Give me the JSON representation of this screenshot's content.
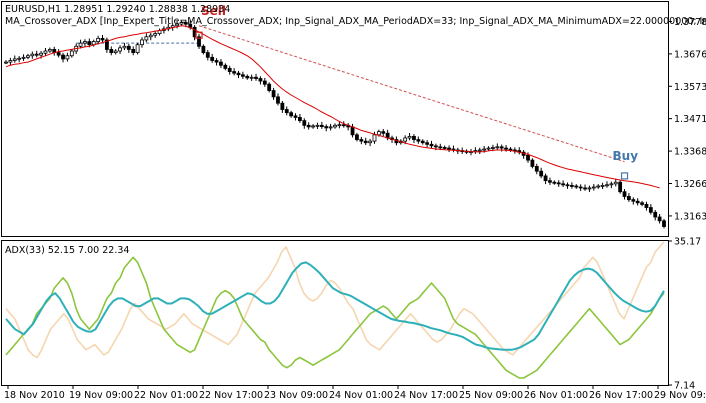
{
  "header": {
    "symbol_line": "EURUSD,H1  1.28951 1.29240 1.28838 1.28934",
    "params_line": "MA_Crossover_ADX [Inp_Expert_Title=MA_Crossover_ADX; Inp_Signal_ADX_MA_PeriodADX=33; Inp_Signal_ADX_MA_MinimumADX=22.00000000; Inp_S"
  },
  "indicator": {
    "label": "ADX(33) 52.15 7.00 22.34"
  },
  "signals": {
    "sell_label": "Sell",
    "buy_label": "Buy"
  },
  "colors": {
    "bars": "#000000",
    "ma": "#dd0000",
    "trend_line": "#d05050",
    "sell": "#cc2222",
    "buy": "#4477aa",
    "adx": "#2eb0b8",
    "plus_di": "#f5d6b0",
    "minus_di": "#8cc63e",
    "frame": "#000000",
    "background": "#ffffff"
  },
  "chart_data": [
    {
      "type": "candlestick",
      "title": "EURUSD,H1",
      "ylim": [
        1.31,
        1.384
      ],
      "y_ticks": [
        "1.37785",
        "1.36760",
        "1.35735",
        "1.34710",
        "1.33685",
        "1.32660",
        "1.31635"
      ],
      "x_ticks": [
        "18 Nov 2010",
        "19 Nov 09:00",
        "22 Nov 01:00",
        "22 Nov 17:00",
        "23 Nov 09:00",
        "24 Nov 01:00",
        "24 Nov 17:00",
        "25 Nov 09:00",
        "26 Nov 01:00",
        "26 Nov 17:00",
        "29 Nov 09:00"
      ],
      "close": [
        1.365,
        1.3655,
        1.366,
        1.3662,
        1.3665,
        1.367,
        1.3675,
        1.3672,
        1.3678,
        1.3685,
        1.369,
        1.368,
        1.3672,
        1.366,
        1.367,
        1.3685,
        1.37,
        1.371,
        1.3715,
        1.3705,
        1.3715,
        1.3725,
        1.372,
        1.369,
        1.368,
        1.3685,
        1.3695,
        1.37,
        1.369,
        1.368,
        1.3705,
        1.372,
        1.373,
        1.3735,
        1.374,
        1.375,
        1.3755,
        1.376,
        1.3765,
        1.377,
        1.3775,
        1.377,
        1.376,
        1.373,
        1.37,
        1.368,
        1.3665,
        1.3655,
        1.365,
        1.364,
        1.363,
        1.362,
        1.3615,
        1.361,
        1.3605,
        1.36,
        1.3602,
        1.3598,
        1.359,
        1.358,
        1.356,
        1.354,
        1.352,
        1.35,
        1.349,
        1.348,
        1.3475,
        1.3465,
        1.345,
        1.3445,
        1.3448,
        1.345,
        1.3446,
        1.3442,
        1.3445,
        1.345,
        1.3452,
        1.345,
        1.3445,
        1.342,
        1.3405,
        1.34,
        1.3395,
        1.34,
        1.342,
        1.343,
        1.3425,
        1.341,
        1.3405,
        1.3395,
        1.34,
        1.341,
        1.3415,
        1.3405,
        1.34,
        1.3395,
        1.339,
        1.3385,
        1.3382,
        1.338,
        1.3378,
        1.3375,
        1.3372,
        1.337,
        1.3368,
        1.3365,
        1.3367,
        1.337,
        1.3372,
        1.3375,
        1.3378,
        1.338,
        1.3382,
        1.3378,
        1.3375,
        1.3372,
        1.337,
        1.3365,
        1.3355,
        1.334,
        1.332,
        1.3305,
        1.329,
        1.3275,
        1.327,
        1.3268,
        1.3265,
        1.3262,
        1.326,
        1.3258,
        1.3255,
        1.3252,
        1.325,
        1.3252,
        1.3255,
        1.3258,
        1.326,
        1.3262,
        1.3265,
        1.327,
        1.324,
        1.3225,
        1.3215,
        1.321,
        1.3205,
        1.32,
        1.319,
        1.3175,
        1.316,
        1.3148,
        1.313
      ],
      "moving_average": [
        1.3635,
        1.364,
        1.3643,
        1.3645,
        1.3648,
        1.365,
        1.3655,
        1.366,
        1.3665,
        1.367,
        1.3675,
        1.368,
        1.3683,
        1.3685,
        1.3688,
        1.369,
        1.3693,
        1.3695,
        1.3698,
        1.37,
        1.3704,
        1.3708,
        1.3712,
        1.3716,
        1.372,
        1.3725,
        1.3728,
        1.373,
        1.3733,
        1.3736,
        1.3738,
        1.3741,
        1.3743,
        1.3745,
        1.3748,
        1.375,
        1.3753,
        1.3756,
        1.3759,
        1.3762,
        1.3765,
        1.3763,
        1.3758,
        1.3752,
        1.3745,
        1.3738,
        1.373,
        1.3722,
        1.3715,
        1.3708,
        1.3702,
        1.3696,
        1.369,
        1.3684,
        1.3677,
        1.367,
        1.366,
        1.3648,
        1.3635,
        1.362,
        1.3605,
        1.359,
        1.3577,
        1.3565,
        1.3555,
        1.3546,
        1.3538,
        1.353,
        1.3522,
        1.3515,
        1.3508,
        1.35,
        1.3492,
        1.3485,
        1.3478,
        1.347,
        1.3462,
        1.3455,
        1.345,
        1.3445,
        1.344,
        1.3434,
        1.343,
        1.3426,
        1.3422,
        1.3418,
        1.3414,
        1.341,
        1.3406,
        1.3402,
        1.3398,
        1.3394,
        1.339,
        1.3387,
        1.3384,
        1.3381,
        1.3379,
        1.3377,
        1.3375,
        1.3374,
        1.3373,
        1.3372,
        1.3371,
        1.337,
        1.3369,
        1.3368,
        1.3367,
        1.3366,
        1.3366,
        1.3367,
        1.3369,
        1.3371,
        1.3372,
        1.3372,
        1.3371,
        1.337,
        1.3368,
        1.3365,
        1.3362,
        1.3358,
        1.3353,
        1.3348,
        1.3342,
        1.3336,
        1.333,
        1.3325,
        1.332,
        1.3316,
        1.3312,
        1.3309,
        1.3306,
        1.3303,
        1.33,
        1.3297,
        1.3294,
        1.3291,
        1.3288,
        1.3285,
        1.3282,
        1.328,
        1.3277,
        1.3275,
        1.3273,
        1.3271,
        1.3269,
        1.3266,
        1.3263,
        1.326,
        1.3256,
        1.3252
      ],
      "trend_line": [
        [
          44,
          1.3765
        ],
        [
          141,
          1.3335
        ]
      ],
      "reference_line": [
        [
          16,
          1.371
        ],
        [
          44,
          1.371
        ]
      ],
      "signals": [
        {
          "label": "Sell",
          "index": 44,
          "price": 1.3735
        },
        {
          "label": "Buy",
          "index": 141,
          "price": 1.329
        }
      ]
    },
    {
      "type": "line",
      "title": "ADX(33) 52.15 7.00 22.34",
      "ylim": [
        7.14,
        35.17
      ],
      "y_ticks": [
        "35.17",
        "7.14"
      ],
      "series": [
        {
          "key": "adx",
          "values": [
            20,
            19,
            18,
            17.5,
            17,
            18,
            19,
            20.5,
            22,
            23.5,
            24.5,
            25,
            24,
            22.5,
            21,
            19.5,
            18.5,
            18,
            17.6,
            17.5,
            18,
            19.5,
            21,
            22.5,
            23.5,
            24,
            24,
            23.5,
            23,
            22.5,
            22.5,
            23,
            23.5,
            24,
            24,
            23.5,
            23,
            23,
            23.5,
            24,
            24,
            23.8,
            23.2,
            22.5,
            21.5,
            21,
            21,
            21.5,
            22,
            22.5,
            23,
            23.5,
            24,
            24.5,
            25,
            24.8,
            24.2,
            23.5,
            23,
            23,
            23.5,
            24.5,
            26,
            27.5,
            29,
            30,
            30.8,
            31,
            30.5,
            29.8,
            29,
            28,
            27,
            26,
            25.5,
            25,
            24.8,
            24.5,
            24,
            23.5,
            23,
            22.5,
            22,
            21.5,
            21,
            20.5,
            20,
            19.8,
            19.6,
            19.5,
            19.3,
            19.2,
            19,
            18.8,
            18.5,
            18.2,
            18,
            17.8,
            17.5,
            17.2,
            17,
            16.8,
            16.5,
            16,
            15.5,
            15,
            14.8,
            14.5,
            14.3,
            14.2,
            14.1,
            14,
            14,
            14,
            14.2,
            14.5,
            15,
            15.5,
            16,
            17,
            18.5,
            20,
            21.5,
            23,
            24.5,
            26,
            27.5,
            28.5,
            29.2,
            29.6,
            29.8,
            29.6,
            29,
            28,
            27,
            26,
            25,
            24.2,
            23.5,
            23,
            22.5,
            22,
            21.6,
            21.4,
            21.6,
            22.5,
            24,
            25.5
          ]
        },
        {
          "key": "plus_di",
          "values": [
            22,
            21,
            20,
            18,
            16,
            14,
            13,
            12.5,
            14,
            16,
            18,
            19,
            20,
            21,
            20,
            18,
            16,
            15,
            14,
            14.5,
            15,
            14,
            13,
            13.5,
            15,
            16.5,
            18,
            20,
            22,
            23,
            22,
            21,
            20,
            19.5,
            19,
            18.5,
            18,
            18.5,
            19,
            20,
            21,
            20,
            19,
            18.5,
            18,
            17.5,
            17,
            16.5,
            16,
            15.5,
            15,
            16,
            17,
            19,
            21,
            23,
            25,
            26,
            27,
            28,
            29.5,
            31,
            33,
            34,
            32,
            30,
            27,
            25,
            24,
            23.5,
            24,
            25,
            26.5,
            27.5,
            27,
            26,
            24.5,
            23,
            22,
            20,
            18,
            16,
            15,
            14.5,
            14,
            15,
            16,
            17,
            18,
            19,
            20,
            21,
            20,
            19,
            18,
            17,
            16,
            15.5,
            16,
            17,
            18,
            19.5,
            21,
            22,
            21.5,
            21,
            20,
            19,
            18,
            17,
            16,
            15,
            14,
            13.5,
            13,
            14,
            15,
            16,
            17,
            18,
            19,
            20,
            21,
            22,
            23,
            24,
            25,
            26,
            27,
            28,
            30,
            31,
            32,
            31,
            29,
            27,
            25,
            23,
            21,
            20,
            22,
            24,
            26,
            28,
            30,
            31,
            33,
            34,
            35
          ]
        },
        {
          "key": "minus_di",
          "values": [
            13,
            14,
            15,
            16,
            17,
            18,
            19,
            21,
            22,
            23,
            24,
            26,
            27,
            28,
            27,
            25,
            22,
            20,
            19,
            18,
            19,
            20,
            22,
            24,
            25,
            27,
            28,
            30,
            31,
            32,
            31,
            29,
            27,
            24,
            22,
            20,
            18,
            17,
            16,
            15,
            14.5,
            14,
            13.5,
            14,
            16,
            18,
            20,
            22,
            24,
            25,
            25.5,
            25,
            24,
            22,
            20,
            19,
            18,
            17,
            16,
            15.5,
            14,
            13,
            12,
            11,
            10.5,
            11,
            12,
            12.5,
            12,
            11.5,
            11,
            11.5,
            12,
            12.5,
            13,
            13.5,
            14,
            15,
            16,
            17,
            18,
            19,
            20,
            21,
            21.5,
            22,
            22.5,
            22,
            21,
            20,
            21,
            22,
            23,
            23.5,
            24,
            25,
            26,
            27,
            26,
            25,
            24,
            22,
            20,
            19,
            18.5,
            18,
            17.5,
            17,
            16,
            15,
            14,
            13,
            12,
            11,
            10,
            9.5,
            9,
            8.5,
            8.5,
            9,
            9.5,
            10,
            11,
            12,
            13,
            14,
            15,
            16,
            17,
            18,
            19,
            20,
            21,
            22,
            21,
            20,
            19,
            18,
            17,
            16,
            15,
            15.5,
            16,
            17,
            18,
            19,
            20,
            21,
            22.5,
            24,
            25
          ]
        }
      ]
    }
  ]
}
